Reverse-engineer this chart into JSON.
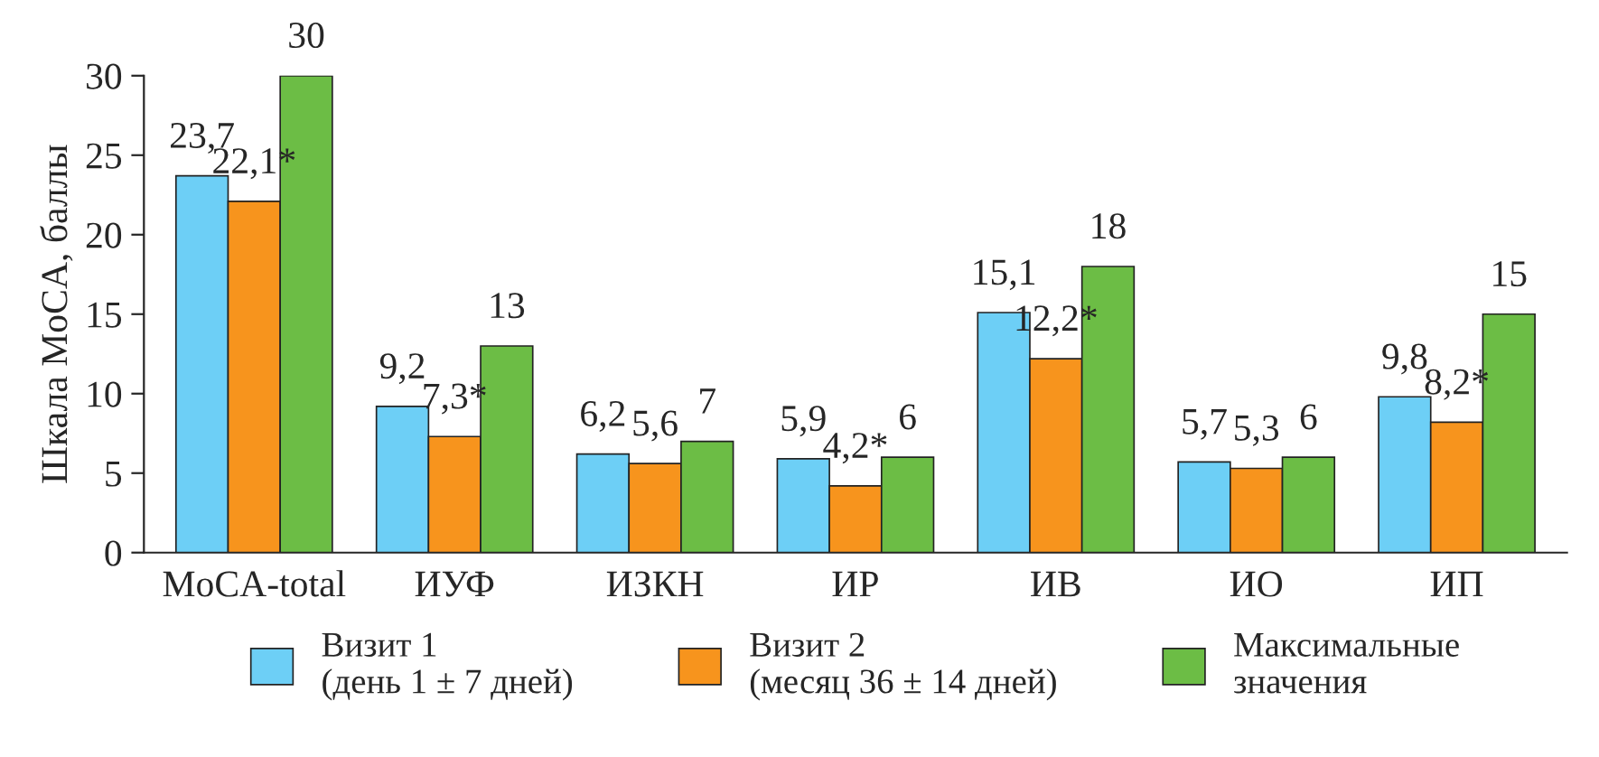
{
  "chart_data": {
    "type": "bar",
    "ylabel": "Шкала MoCA, баллы",
    "categories": [
      "MoCA-total",
      "ИУФ",
      "ИЗКН",
      "ИР",
      "ИВ",
      "ИО",
      "ИП"
    ],
    "series": [
      {
        "name": "Визит 1\n(день 1 ± 7 дней)",
        "color": "#6dcff6",
        "values": [
          23.7,
          9.2,
          6.2,
          5.9,
          15.1,
          5.7,
          9.8
        ],
        "value_labels": [
          "23,7",
          "9,2",
          "6,2",
          "5,9",
          "15,1",
          "5,7",
          "9,8"
        ]
      },
      {
        "name": "Визит 2\n(месяц 36 ± 14 дней)",
        "color": "#f7941d",
        "values": [
          22.1,
          7.3,
          5.6,
          4.2,
          12.2,
          5.3,
          8.2
        ],
        "value_labels": [
          "22,1*",
          "7,3*",
          "5,6",
          "4,2*",
          "12,2*",
          "5,3",
          "8,2*"
        ]
      },
      {
        "name": "Максимальные\nзначения",
        "color": "#6cbd45",
        "values": [
          30,
          13,
          7,
          6,
          18,
          6,
          15
        ],
        "value_labels": [
          "30",
          "13",
          "7",
          "6",
          "18",
          "6",
          "15"
        ]
      }
    ],
    "ylim": [
      0,
      30
    ],
    "yticks": [
      0,
      5,
      10,
      15,
      20,
      25,
      30
    ],
    "grid": false,
    "legend": "bottom"
  }
}
